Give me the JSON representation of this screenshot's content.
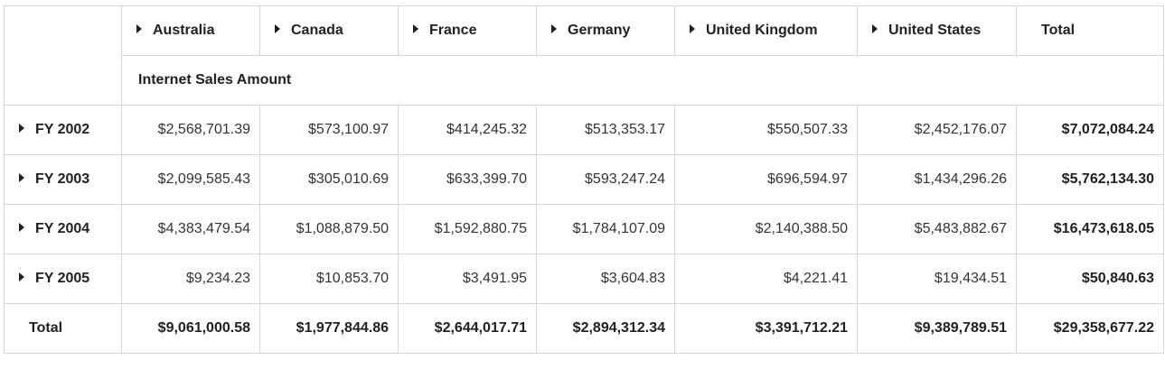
{
  "columns": [
    "Australia",
    "Canada",
    "France",
    "Germany",
    "United Kingdom",
    "United States"
  ],
  "total_column_label": "Total",
  "measure_label": "Internet Sales Amount",
  "rows": [
    {
      "label": "FY 2002",
      "values": [
        "$2,568,701.39",
        "$573,100.97",
        "$414,245.32",
        "$513,353.17",
        "$550,507.33",
        "$2,452,176.07"
      ],
      "total": "$7,072,084.24"
    },
    {
      "label": "FY 2003",
      "values": [
        "$2,099,585.43",
        "$305,010.69",
        "$633,399.70",
        "$593,247.24",
        "$696,594.97",
        "$1,434,296.26"
      ],
      "total": "$5,762,134.30"
    },
    {
      "label": "FY 2004",
      "values": [
        "$4,383,479.54",
        "$1,088,879.50",
        "$1,592,880.75",
        "$1,784,107.09",
        "$2,140,388.50",
        "$5,483,882.67"
      ],
      "total": "$16,473,618.05"
    },
    {
      "label": "FY 2005",
      "values": [
        "$9,234.23",
        "$10,853.70",
        "$3,491.95",
        "$3,604.83",
        "$4,221.41",
        "$19,434.51"
      ],
      "total": "$50,840.63"
    }
  ],
  "grand_total": {
    "label": "Total",
    "values": [
      "$9,061,000.58",
      "$1,977,844.86",
      "$2,644,017.71",
      "$2,894,312.34",
      "$3,391,712.21",
      "$9,389,789.51"
    ],
    "total": "$29,358,677.22"
  }
}
